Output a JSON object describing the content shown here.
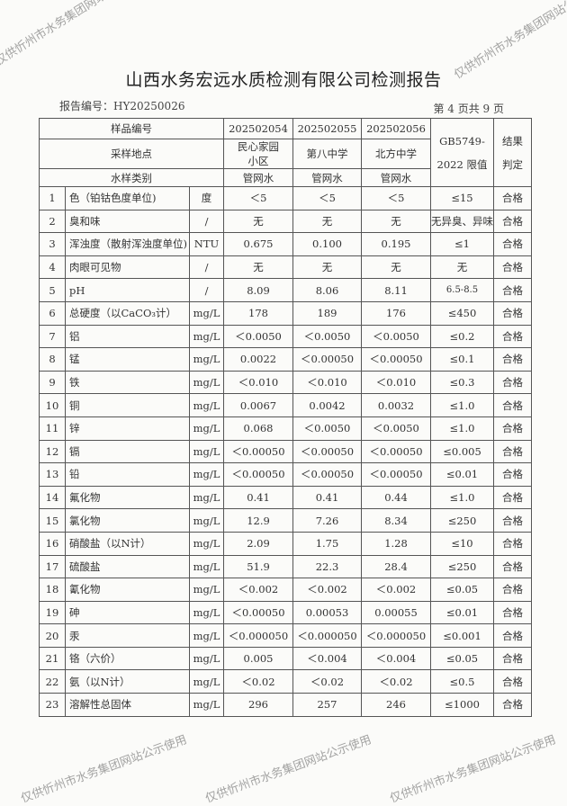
{
  "title": "山西水务宏远水质检测有限公司检测报告",
  "report_no": "报告编号：HY20250026",
  "page_no": "第 4 页共 9 页",
  "watermark": "仅供忻州市水务集团网站公示使用",
  "header": {
    "sample_no_label": "样品编号",
    "location_label": "采样地点",
    "type_label": "水样类别",
    "standard_label": "GB5749-2022 限值",
    "result_label": "结果判定",
    "samples": [
      {
        "no": "202502054",
        "location": "民心家园小区",
        "type": "管网水"
      },
      {
        "no": "202502055",
        "location": "第八中学",
        "type": "管网水"
      },
      {
        "no": "202502056",
        "location": "北方中学",
        "type": "管网水"
      }
    ]
  },
  "rows": [
    {
      "n": "1",
      "item": "色（铂钴色度单位)",
      "unit": "度",
      "v": [
        "＜5",
        "＜5",
        "＜5"
      ],
      "limit": "≤15",
      "result": "合格"
    },
    {
      "n": "2",
      "item": "臭和味",
      "unit": "/",
      "v": [
        "无",
        "无",
        "无"
      ],
      "limit": "无异臭、异味",
      "result": "合格"
    },
    {
      "n": "3",
      "item": "浑浊度（散射浑浊度单位)",
      "unit": "NTU",
      "v": [
        "0.675",
        "0.100",
        "0.195"
      ],
      "limit": "≤1",
      "result": "合格"
    },
    {
      "n": "4",
      "item": "肉眼可见物",
      "unit": "/",
      "v": [
        "无",
        "无",
        "无"
      ],
      "limit": "无",
      "result": "合格"
    },
    {
      "n": "5",
      "item": "pH",
      "unit": "/",
      "v": [
        "8.09",
        "8.06",
        "8.11"
      ],
      "limit": "6.5-8.5",
      "result": "合格"
    },
    {
      "n": "6",
      "item": "总硬度（以CaCO₃计）",
      "unit": "mg/L",
      "v": [
        "178",
        "189",
        "176"
      ],
      "limit": "≤450",
      "result": "合格"
    },
    {
      "n": "7",
      "item": "铝",
      "unit": "mg/L",
      "v": [
        "＜0.0050",
        "＜0.0050",
        "＜0.0050"
      ],
      "limit": "≤0.2",
      "result": "合格"
    },
    {
      "n": "8",
      "item": "锰",
      "unit": "mg/L",
      "v": [
        "0.0022",
        "＜0.00050",
        "＜0.00050"
      ],
      "limit": "≤0.1",
      "result": "合格"
    },
    {
      "n": "9",
      "item": "铁",
      "unit": "mg/L",
      "v": [
        "＜0.010",
        "＜0.010",
        "＜0.010"
      ],
      "limit": "≤0.3",
      "result": "合格"
    },
    {
      "n": "10",
      "item": "铜",
      "unit": "mg/L",
      "v": [
        "0.0067",
        "0.0042",
        "0.0032"
      ],
      "limit": "≤1.0",
      "result": "合格"
    },
    {
      "n": "11",
      "item": "锌",
      "unit": "mg/L",
      "v": [
        "0.068",
        "＜0.0050",
        "＜0.0050"
      ],
      "limit": "≤1.0",
      "result": "合格"
    },
    {
      "n": "12",
      "item": "镉",
      "unit": "mg/L",
      "v": [
        "＜0.00050",
        "＜0.00050",
        "＜0.00050"
      ],
      "limit": "≤0.005",
      "result": "合格"
    },
    {
      "n": "13",
      "item": "铅",
      "unit": "mg/L",
      "v": [
        "＜0.00050",
        "＜0.00050",
        "＜0.00050"
      ],
      "limit": "≤0.01",
      "result": "合格"
    },
    {
      "n": "14",
      "item": "氟化物",
      "unit": "mg/L",
      "v": [
        "0.41",
        "0.41",
        "0.44"
      ],
      "limit": "≤1.0",
      "result": "合格"
    },
    {
      "n": "15",
      "item": "氯化物",
      "unit": "mg/L",
      "v": [
        "12.9",
        "7.26",
        "8.34"
      ],
      "limit": "≤250",
      "result": "合格"
    },
    {
      "n": "16",
      "item": "硝酸盐（以N计）",
      "unit": "mg/L",
      "v": [
        "2.09",
        "1.75",
        "1.28"
      ],
      "limit": "≤10",
      "result": "合格"
    },
    {
      "n": "17",
      "item": "硫酸盐",
      "unit": "mg/L",
      "v": [
        "51.9",
        "22.3",
        "28.4"
      ],
      "limit": "≤250",
      "result": "合格"
    },
    {
      "n": "18",
      "item": "氰化物",
      "unit": "mg/L",
      "v": [
        "＜0.002",
        "＜0.002",
        "＜0.002"
      ],
      "limit": "≤0.05",
      "result": "合格"
    },
    {
      "n": "19",
      "item": "砷",
      "unit": "mg/L",
      "v": [
        "＜0.00050",
        "0.00053",
        "0.00055"
      ],
      "limit": "≤0.01",
      "result": "合格"
    },
    {
      "n": "20",
      "item": "汞",
      "unit": "mg/L",
      "v": [
        "＜0.000050",
        "＜0.000050",
        "＜0.000050"
      ],
      "limit": "≤0.001",
      "result": "合格"
    },
    {
      "n": "21",
      "item": "铬（六价）",
      "unit": "mg/L",
      "v": [
        "0.005",
        "＜0.004",
        "＜0.004"
      ],
      "limit": "≤0.05",
      "result": "合格"
    },
    {
      "n": "22",
      "item": "氨（以N计）",
      "unit": "mg/L",
      "v": [
        "＜0.02",
        "＜0.02",
        "＜0.02"
      ],
      "limit": "≤0.5",
      "result": "合格"
    },
    {
      "n": "23",
      "item": "溶解性总固体",
      "unit": "mg/L",
      "v": [
        "296",
        "257",
        "246"
      ],
      "limit": "≤1000",
      "result": "合格"
    }
  ]
}
